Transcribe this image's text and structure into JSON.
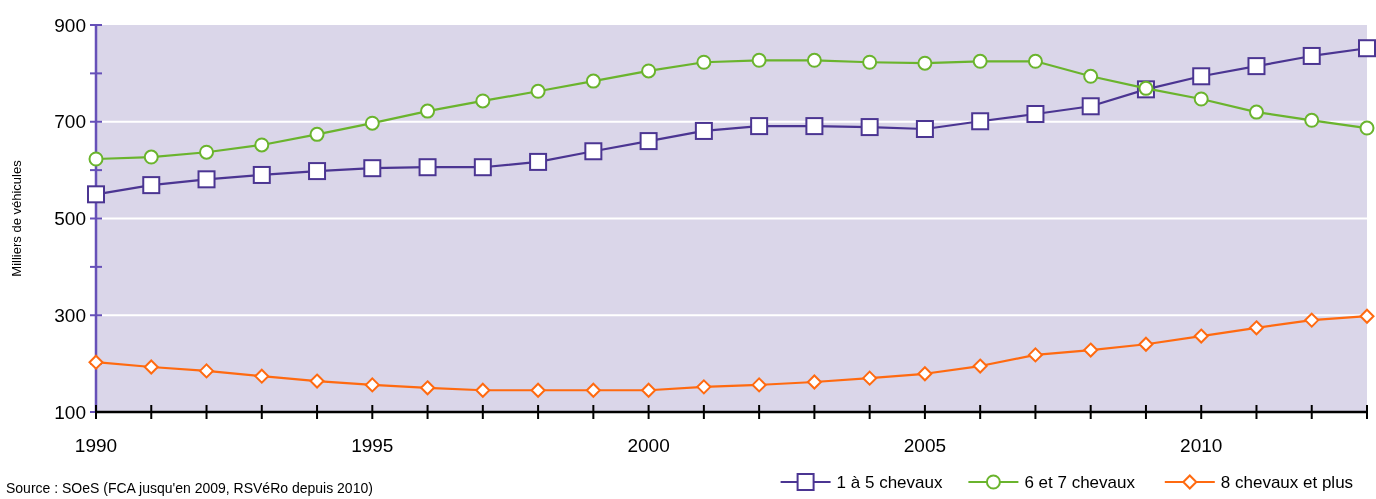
{
  "chart_data": {
    "type": "line",
    "ylabel": "Milliers de véhicules",
    "x": [
      1990,
      1991,
      1992,
      1993,
      1994,
      1995,
      1996,
      1997,
      1998,
      1999,
      2000,
      2001,
      2002,
      2003,
      2004,
      2005,
      2006,
      2007,
      2008,
      2009,
      2010,
      2011,
      2012,
      2013
    ],
    "xlim": [
      1990,
      2013
    ],
    "ylim": [
      100,
      900
    ],
    "xticks": [
      1990,
      {
        "value": 1991,
        "label": null
      },
      {
        "value": 1992,
        "label": null
      },
      {
        "value": 1993,
        "label": null
      },
      {
        "value": 1994,
        "label": null
      },
      1995,
      {
        "value": 1996,
        "label": null
      },
      {
        "value": 1997,
        "label": null
      },
      {
        "value": 1998,
        "label": null
      },
      {
        "value": 1999,
        "label": null
      },
      2000,
      {
        "value": 2001,
        "label": null
      },
      {
        "value": 2002,
        "label": null
      },
      {
        "value": 2003,
        "label": null
      },
      {
        "value": 2004,
        "label": null
      },
      2005,
      {
        "value": 2006,
        "label": null
      },
      {
        "value": 2007,
        "label": null
      },
      {
        "value": 2008,
        "label": null
      },
      {
        "value": 2009,
        "label": null
      },
      2010,
      {
        "value": 2011,
        "label": null
      },
      {
        "value": 2012,
        "label": null
      },
      {
        "value": 2013,
        "label": null
      }
    ],
    "yticks": [
      100,
      {
        "value": 200,
        "label": null
      },
      300,
      {
        "value": 400,
        "label": null
      },
      500,
      {
        "value": 600,
        "label": null
      },
      700,
      {
        "value": 800,
        "label": null
      },
      900
    ],
    "grid": "y",
    "legend": "bottom right",
    "line_style": "solid",
    "series": [
      {
        "name": "1 à 5 chevaux",
        "color": "#4b3592",
        "marker": "square",
        "values": [
          550,
          569,
          581,
          590,
          598,
          604,
          606,
          606,
          617,
          639,
          660,
          681,
          691,
          691,
          689,
          685,
          701,
          716,
          732,
          767,
          794,
          815,
          836,
          852
        ]
      },
      {
        "name": "6 et 7 chevaux",
        "color": "#6ab42d",
        "marker": "circle",
        "values": [
          623,
          627,
          637,
          652,
          674,
          697,
          722,
          743,
          763,
          784,
          805,
          823,
          827,
          827,
          823,
          821,
          825,
          825,
          794,
          769,
          747,
          720,
          703,
          687
        ]
      },
      {
        "name": "8 chevaux et plus",
        "color": "#ff6a10",
        "marker": "diamond",
        "values": [
          203,
          193,
          185,
          174,
          164,
          156,
          150,
          145,
          145,
          145,
          145,
          152,
          156,
          162,
          170,
          179,
          195,
          218,
          228,
          240,
          257,
          274,
          290,
          298
        ]
      }
    ],
    "annotations": [
      "Source : SOeS (FCA jusqu'en 2009, RSVéRo depuis 2010)"
    ]
  }
}
